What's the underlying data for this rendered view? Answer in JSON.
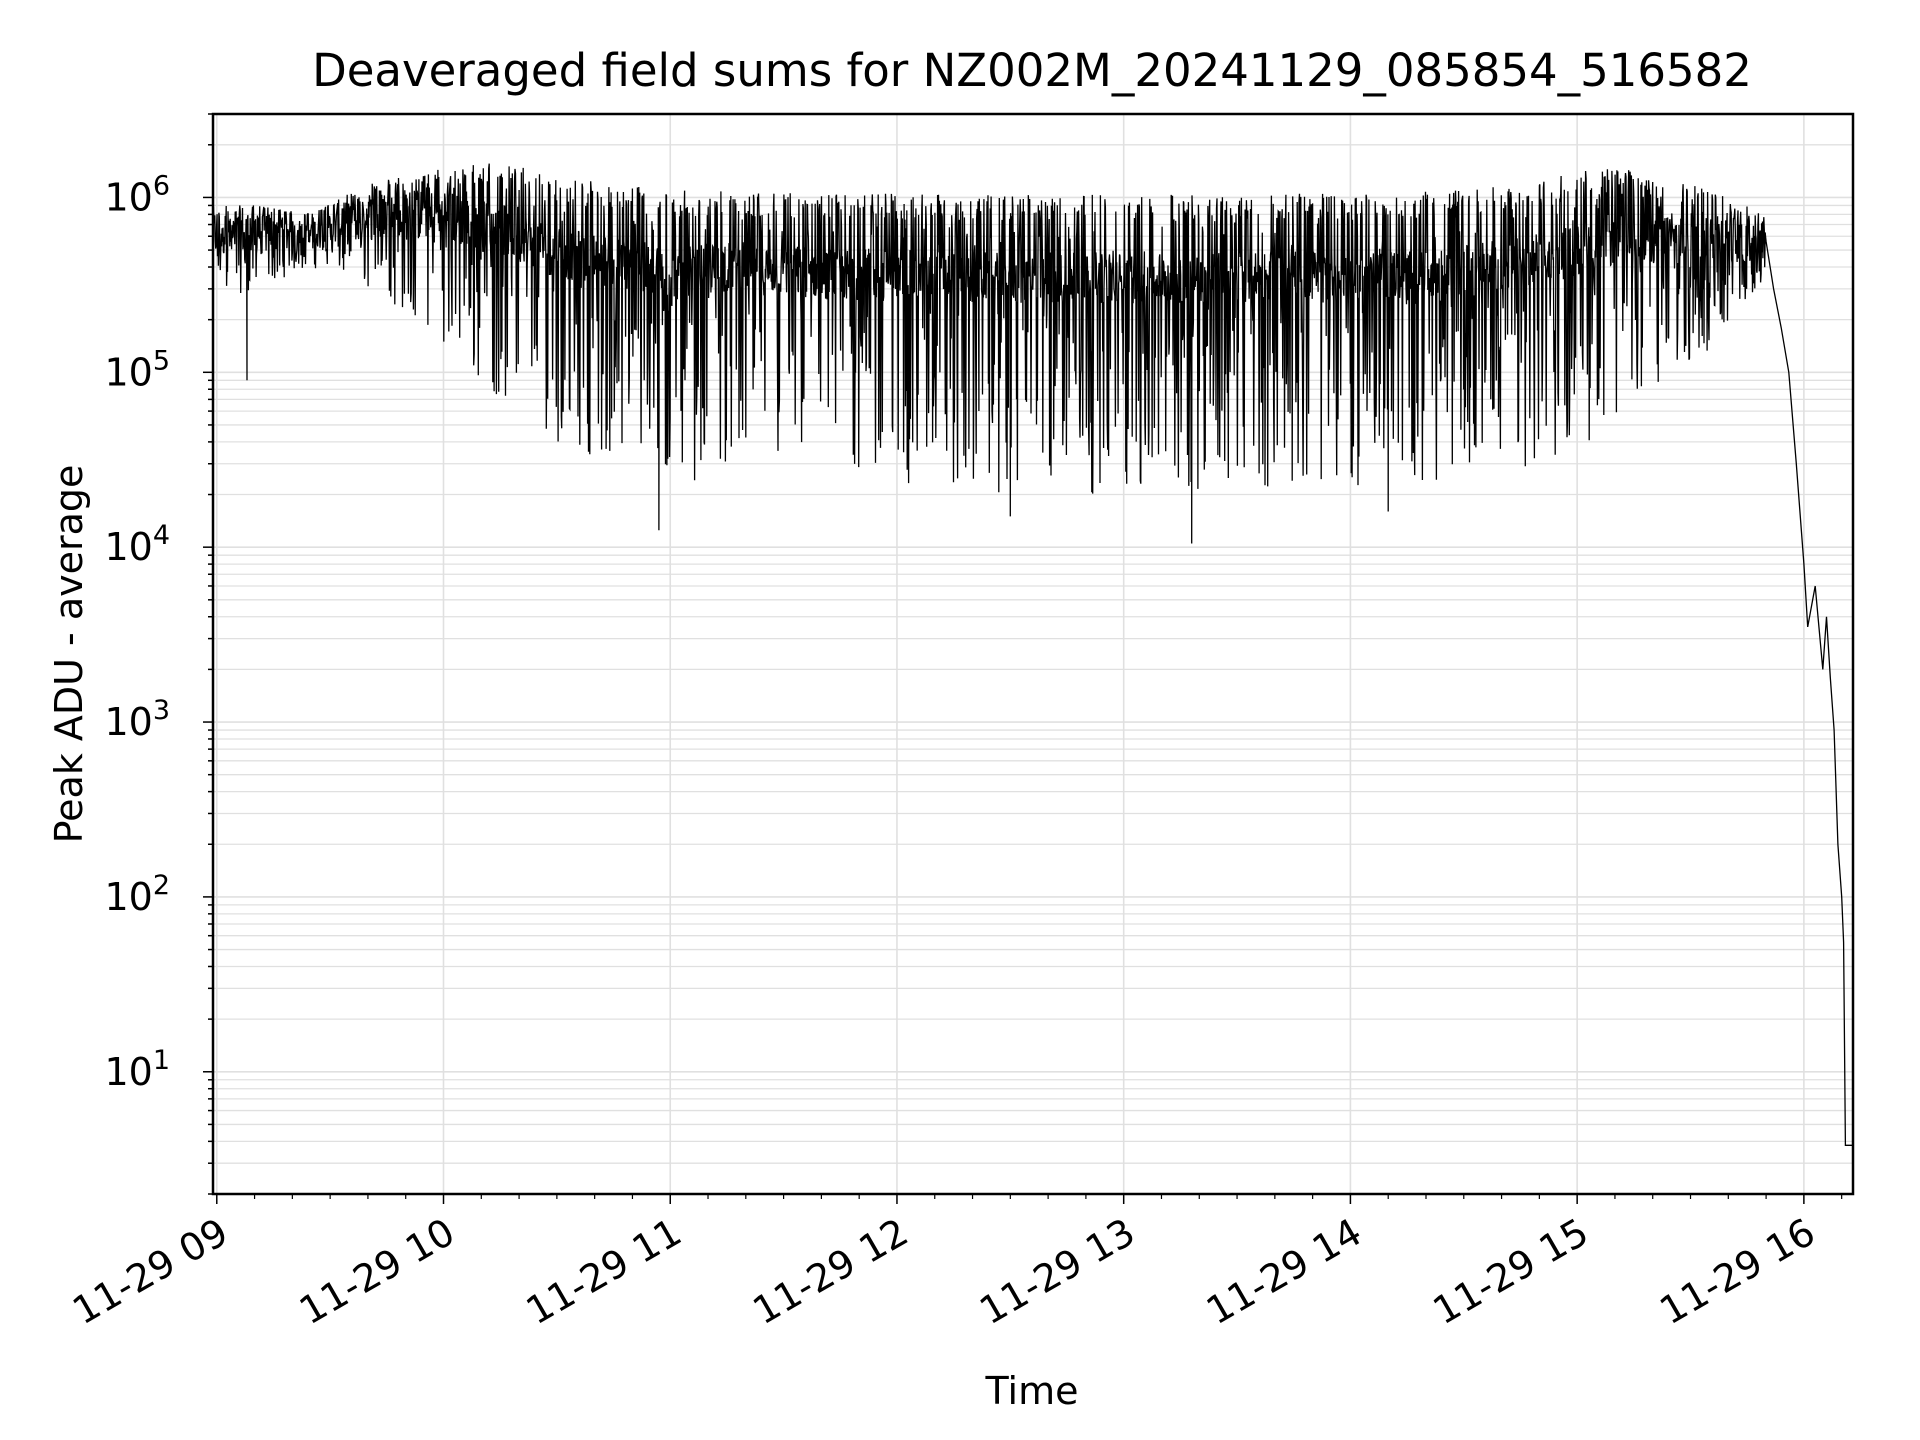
{
  "chart_data": {
    "type": "line",
    "title": "Deaveraged field sums for NZ002M_20241129_085854_516582",
    "xlabel": "Time",
    "ylabel": "Peak ADU - average",
    "yscale": "log",
    "ylim": [
      2,
      3000000
    ],
    "xlim": [
      "2024-11-29 08:59",
      "2024-11-29 16:13"
    ],
    "grid": true,
    "line_color": "#000000",
    "grid_color": "#e0e0e0",
    "x_ticks": [
      {
        "label": "11-29 09",
        "time": "2024-11-29 09:00"
      },
      {
        "label": "11-29 10",
        "time": "2024-11-29 10:00"
      },
      {
        "label": "11-29 11",
        "time": "2024-11-29 11:00"
      },
      {
        "label": "11-29 12",
        "time": "2024-11-29 12:00"
      },
      {
        "label": "11-29 13",
        "time": "2024-11-29 13:00"
      },
      {
        "label": "11-29 14",
        "time": "2024-11-29 14:00"
      },
      {
        "label": "11-29 15",
        "time": "2024-11-29 15:00"
      },
      {
        "label": "11-29 16",
        "time": "2024-11-29 16:00"
      }
    ],
    "y_ticks": [
      {
        "base": "10",
        "exp": "1",
        "value": 10
      },
      {
        "base": "10",
        "exp": "2",
        "value": 100
      },
      {
        "base": "10",
        "exp": "3",
        "value": 1000
      },
      {
        "base": "10",
        "exp": "4",
        "value": 10000
      },
      {
        "base": "10",
        "exp": "5",
        "value": 100000
      },
      {
        "base": "10",
        "exp": "6",
        "value": 1000000
      }
    ],
    "series": [
      {
        "envelope": {
          "time": [
            "08:59",
            "09:10",
            "09:25",
            "09:40",
            "10:00",
            "10:10",
            "10:20",
            "10:30",
            "10:45",
            "11:00",
            "11:15",
            "11:30",
            "12:00",
            "12:30",
            "13:00",
            "13:30",
            "14:00",
            "14:30",
            "14:45",
            "15:00",
            "15:10",
            "15:30",
            "15:45",
            "15:50",
            "15:55",
            "16:00",
            "16:02",
            "16:05",
            "16:08",
            "16:10",
            "16:13"
          ],
          "low": [
            250000,
            300000,
            400000,
            300000,
            150000,
            80000,
            60000,
            40000,
            30000,
            20000,
            30000,
            25000,
            22000,
            20000,
            20000,
            22000,
            22000,
            25000,
            28000,
            35000,
            50000,
            100000,
            200000,
            350000,
            100000,
            5000,
            2500,
            1500,
            200,
            4,
            4
          ],
          "high": [
            900000,
            900000,
            800000,
            1200000,
            1500000,
            1600000,
            1500000,
            1300000,
            1200000,
            1100000,
            1100000,
            1100000,
            1050000,
            1050000,
            1050000,
            1050000,
            1050000,
            1100000,
            1200000,
            1400000,
            1500000,
            1200000,
            900000,
            800000,
            500000,
            20000,
            6000,
            5000,
            1000,
            10,
            4
          ]
        },
        "notable_dips": [
          {
            "time": "08:59",
            "value": 170000
          },
          {
            "time": "09:08",
            "value": 90000
          },
          {
            "time": "10:57",
            "value": 12500
          },
          {
            "time": "12:30",
            "value": 15000
          },
          {
            "time": "13:18",
            "value": 10500
          },
          {
            "time": "14:10",
            "value": 16000
          }
        ],
        "tail": [
          {
            "time": "15:50",
            "value": 560000
          },
          {
            "time": "15:52",
            "value": 300000
          },
          {
            "time": "15:54",
            "value": 180000
          },
          {
            "time": "15:56",
            "value": 100000
          },
          {
            "time": "15:58",
            "value": 30000
          },
          {
            "time": "16:00",
            "value": 8000
          },
          {
            "time": "16:01",
            "value": 3500
          },
          {
            "time": "16:03",
            "value": 6000
          },
          {
            "time": "16:05",
            "value": 2000
          },
          {
            "time": "16:06",
            "value": 4000
          },
          {
            "time": "16:07",
            "value": 1800
          },
          {
            "time": "16:08",
            "value": 900
          },
          {
            "time": "16:09",
            "value": 200
          },
          {
            "time": "16:10",
            "value": 100
          },
          {
            "time": "16:10.5",
            "value": 55
          },
          {
            "time": "16:11",
            "value": 3.8
          },
          {
            "time": "16:13",
            "value": 3.8
          }
        ]
      }
    ]
  }
}
